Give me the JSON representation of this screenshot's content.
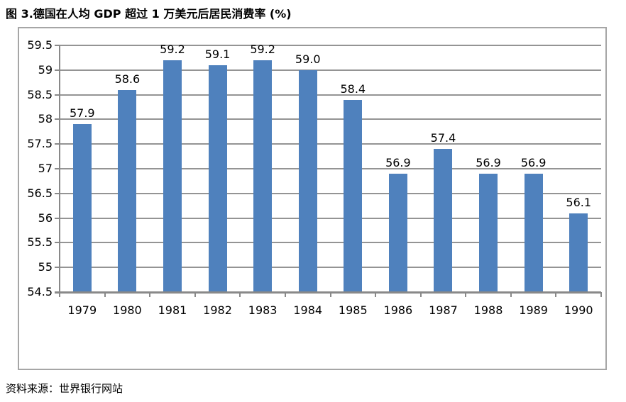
{
  "title": "图 3.德国在人均 GDP 超过 1 万美元后居民消费率 (%)",
  "source": "资料来源：世界银行网站",
  "colors": {
    "bar": "#4f81bd",
    "gridline": "#949494",
    "axis": "#898989",
    "frame_border": "#a6a6a6",
    "text": "#000000"
  },
  "chart_data": {
    "type": "bar",
    "title": "图 3.德国在人均 GDP 超过 1 万美元后居民消费率 (%)",
    "categories": [
      "1979",
      "1980",
      "1981",
      "1982",
      "1983",
      "1984",
      "1985",
      "1986",
      "1987",
      "1988",
      "1989",
      "1990"
    ],
    "values": [
      57.9,
      58.6,
      59.2,
      59.1,
      59.2,
      59.0,
      58.4,
      56.9,
      57.4,
      56.9,
      56.9,
      56.1
    ],
    "data_labels": [
      "57.9",
      "58.6",
      "59.2",
      "59.1",
      "59.2",
      "59.0",
      "58.4",
      "56.9",
      "57.4",
      "56.9",
      "56.9",
      "56.1"
    ],
    "xlabel": "",
    "ylabel": "",
    "ylim": [
      54.5,
      59.5
    ],
    "ytick_step": 0.5,
    "ytick_labels": [
      "59.5",
      "59",
      "58.5",
      "58",
      "57.5",
      "57",
      "56.5",
      "56",
      "55.5",
      "55",
      "54.5"
    ],
    "grid": true,
    "legend_position": "none",
    "source": "资料来源：世界银行网站"
  }
}
